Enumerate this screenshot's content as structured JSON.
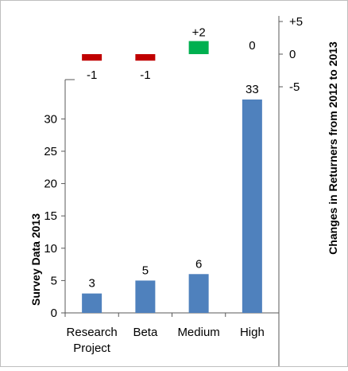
{
  "chart_data": [
    {
      "type": "bar",
      "panel": "changes",
      "categories": [
        "Research Project",
        "Beta",
        "Medium",
        "High"
      ],
      "values": [
        -1,
        -1,
        2,
        0
      ],
      "value_labels": [
        "-1",
        "-1",
        "+2",
        "0"
      ],
      "ylabel": "Changes in Returners from 2012 to 2013",
      "y_axis_side": "right",
      "ylim": [
        -5,
        5
      ],
      "yticks": [
        5,
        0,
        -5
      ],
      "ytick_labels": [
        "+5",
        "0",
        "-5"
      ],
      "colors": {
        "negative": "#c00000",
        "positive": "#00b050"
      },
      "grid": false
    },
    {
      "type": "bar",
      "panel": "survey",
      "categories": [
        "Research Project",
        "Beta",
        "Medium",
        "High"
      ],
      "category_label_lines": [
        [
          "Research",
          "Project"
        ],
        [
          "Beta"
        ],
        [
          "Medium"
        ],
        [
          "High"
        ]
      ],
      "values": [
        3,
        5,
        6,
        33
      ],
      "value_labels": [
        "3",
        "5",
        "6",
        "33"
      ],
      "ylabel": "Survey Data 2013",
      "y_axis_side": "left",
      "ylim": [
        0,
        33
      ],
      "yticks": [
        0,
        5,
        10,
        15,
        20,
        25,
        30
      ],
      "ytick_labels": [
        "0",
        "5",
        "10",
        "15",
        "20",
        "25",
        "30"
      ],
      "colors": {
        "bar": "#4f81bd"
      },
      "grid": false
    }
  ]
}
